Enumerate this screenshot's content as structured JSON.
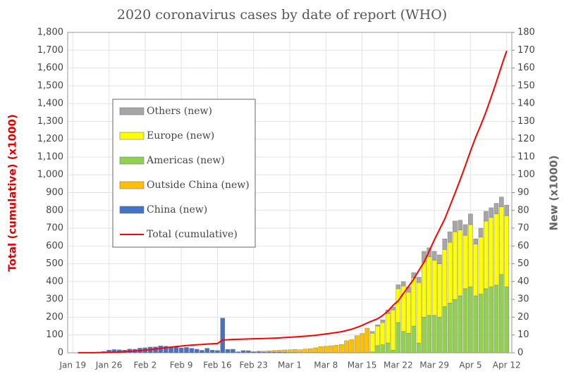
{
  "chart_data": {
    "type": "stacked_bar_line",
    "title": "2020 coronavirus cases by date of report (WHO)",
    "ylabel": "Total (cumulative) (x1000)",
    "y2label": "New (x1000)",
    "categories": [
      "Jan 19",
      null,
      null,
      null,
      null,
      null,
      null,
      "Jan 26",
      null,
      null,
      null,
      null,
      null,
      null,
      "Feb 2",
      null,
      null,
      null,
      null,
      null,
      null,
      "Feb 9",
      null,
      null,
      null,
      null,
      null,
      null,
      "Feb 16",
      null,
      null,
      null,
      null,
      null,
      null,
      "Feb 23",
      null,
      null,
      null,
      null,
      null,
      null,
      "Mar 1",
      null,
      null,
      null,
      null,
      null,
      null,
      "Mar 8",
      null,
      null,
      null,
      null,
      null,
      null,
      "Mar 15",
      null,
      null,
      null,
      null,
      null,
      null,
      "Mar 22",
      null,
      null,
      null,
      null,
      null,
      null,
      "Mar 29",
      null,
      null,
      null,
      null,
      null,
      null,
      "Apr 5",
      null,
      null,
      null,
      null,
      null,
      null,
      "Apr 12"
    ],
    "series": [
      {
        "name": "Others (new)",
        "color": "#a6a6a6",
        "axis": "y2",
        "values": [
          null,
          null,
          null,
          null,
          null,
          null,
          null,
          null,
          null,
          null,
          null,
          null,
          null,
          null,
          null,
          null,
          null,
          null,
          null,
          null,
          null,
          null,
          null,
          null,
          null,
          null,
          null,
          null,
          null,
          null,
          null,
          null,
          null,
          null,
          null,
          null,
          null,
          null,
          null,
          null,
          null,
          null,
          null,
          null,
          null,
          null,
          null,
          null,
          null,
          null,
          null,
          null,
          null,
          null,
          null,
          null,
          null,
          null,
          1,
          0.7,
          1.5,
          2,
          1.7,
          2.2,
          2.5,
          3,
          3,
          3,
          6,
          5,
          5,
          5,
          6,
          6,
          6,
          5.5,
          6,
          6,
          3,
          5,
          5.5,
          5.5,
          6,
          5.5,
          6
        ]
      },
      {
        "name": "Europe (new)",
        "color": "#ffff00",
        "axis": "y2",
        "values": [
          null,
          null,
          null,
          null,
          null,
          null,
          null,
          null,
          null,
          null,
          null,
          null,
          null,
          null,
          null,
          null,
          null,
          null,
          null,
          null,
          null,
          null,
          null,
          null,
          null,
          null,
          null,
          null,
          null,
          null,
          null,
          null,
          null,
          null,
          null,
          null,
          null,
          null,
          null,
          null,
          null,
          null,
          null,
          null,
          null,
          null,
          null,
          null,
          null,
          null,
          null,
          null,
          null,
          null,
          null,
          null,
          null,
          null,
          10.5,
          11,
          12.5,
          16.5,
          22.5,
          19,
          25.5,
          23,
          27,
          34,
          31,
          33,
          31,
          30,
          32,
          34,
          38,
          37,
          30,
          35,
          29,
          32,
          38,
          39,
          40,
          38,
          40
        ]
      },
      {
        "name": "Americas (new)",
        "color": "#92d050",
        "axis": "y2",
        "values": [
          null,
          null,
          null,
          null,
          null,
          null,
          null,
          null,
          null,
          null,
          null,
          null,
          null,
          null,
          null,
          null,
          null,
          null,
          null,
          null,
          null,
          null,
          null,
          null,
          null,
          null,
          null,
          null,
          null,
          null,
          null,
          null,
          null,
          null,
          null,
          null,
          null,
          null,
          null,
          null,
          null,
          null,
          null,
          null,
          null,
          null,
          null,
          null,
          null,
          null,
          null,
          null,
          null,
          null,
          null,
          null,
          null,
          null,
          0.5,
          4,
          4.5,
          5.5,
          1.5,
          17,
          12,
          11,
          15,
          5.5,
          20,
          21,
          21,
          20,
          26,
          28,
          30,
          32,
          36,
          37,
          32,
          33,
          36,
          37,
          38,
          44,
          37
        ]
      },
      {
        "name": "Outside China (new)",
        "color": "#ffc000",
        "axis": "y2",
        "values": [
          null,
          null,
          null,
          null,
          null,
          null,
          null,
          null,
          null,
          null,
          null,
          null,
          null,
          null,
          null,
          null,
          null,
          null,
          null,
          null,
          null,
          null,
          null,
          null,
          null,
          null,
          null,
          null,
          null,
          null,
          0.1,
          0.1,
          0.1,
          0.2,
          0.2,
          0.3,
          0.3,
          0.5,
          0.7,
          0.9,
          1.0,
          1.3,
          1.5,
          1.7,
          1.6,
          2.0,
          2.2,
          2.7,
          3.4,
          3.6,
          3.9,
          4.2,
          4.6,
          6.7,
          7.4,
          9.5,
          10.8,
          13.8,
          null,
          null,
          null,
          null,
          null,
          null,
          null,
          null,
          null,
          null,
          null,
          null,
          null,
          null,
          null,
          null,
          null,
          null,
          null,
          null,
          null,
          null,
          null,
          null,
          null,
          null,
          null
        ]
      },
      {
        "name": "China (new)",
        "color": "#4472c4",
        "axis": "y2",
        "values": [
          0,
          0,
          0,
          0,
          0.3,
          0.4,
          0.7,
          1.5,
          1.8,
          1.7,
          1.5,
          2.1,
          2.0,
          2.6,
          2.8,
          3.2,
          3.3,
          3.9,
          3.7,
          3.2,
          3.4,
          2.7,
          3.0,
          2.5,
          2.0,
          1.4,
          2.5,
          1.5,
          1.3,
          19.5,
          1.8,
          1.9,
          0.5,
          1.1,
          1.0,
          0.4,
          0.6,
          0.4,
          0.4,
          0.4,
          0.4,
          0.3,
          0.2,
          0.2,
          0.1,
          0.1,
          0.1,
          0.1,
          0.1,
          0.05,
          0.05,
          0.05,
          0.05,
          0.05,
          0.05,
          0.05,
          0.05,
          0.05,
          null,
          null,
          null,
          null,
          null,
          null,
          null,
          null,
          null,
          null,
          null,
          null,
          null,
          null,
          null,
          null,
          null,
          null,
          null,
          null,
          null,
          null,
          null,
          null,
          null,
          null,
          null
        ]
      },
      {
        "name": "Total (cumulative)",
        "color": "#ff0000",
        "type": "line",
        "axis": "y",
        "values": [
          null,
          0.3,
          0.3,
          0.6,
          0.6,
          0.9,
          1.3,
          2.0,
          2.8,
          4.6,
          6.1,
          7.8,
          9.8,
          11.9,
          14.6,
          17.4,
          20.6,
          24.6,
          28.3,
          31.5,
          34.9,
          37.6,
          40.6,
          43.1,
          45.2,
          46.6,
          49.1,
          50.6,
          51.9,
          71.4,
          73.3,
          75.2,
          75.7,
          76.8,
          77.8,
          78.8,
          79.3,
          80.2,
          81.1,
          82.3,
          83.7,
          85.4,
          87.1,
          88.9,
          90.8,
          92.9,
          95.3,
          98.2,
          101.8,
          105.8,
          109.6,
          113.7,
          118.3,
          125.0,
          132.5,
          142.5,
          153.5,
          167.5,
          179.1,
          191.1,
          209.8,
          234.1,
          266.1,
          292.1,
          332.9,
          372.8,
          413.5,
          462.7,
          509.2,
          571.7,
          634.8,
          693.2,
          750.9,
          823.6,
          896.5,
          972.3,
          1051.6,
          1133.8,
          1210.9,
          1279.7,
          1353.4,
          1436.2,
          1521.3,
          1610.9,
          1696.6
        ]
      }
    ],
    "ylim": [
      0,
      1800
    ],
    "yticks": [
      0,
      100,
      200,
      300,
      400,
      500,
      600,
      700,
      800,
      900,
      {
        "value": 1000,
        "label": "1,000"
      },
      {
        "value": 1100,
        "label": "1,100"
      },
      {
        "value": 1200,
        "label": "1,200"
      },
      {
        "value": 1300,
        "label": "1,300"
      },
      {
        "value": 1400,
        "label": "1,400"
      },
      {
        "value": 1500,
        "label": "1,500"
      },
      {
        "value": 1600,
        "label": "1,600"
      },
      {
        "value": 1700,
        "label": "1,700"
      },
      {
        "value": 1800,
        "label": "1,800"
      }
    ],
    "y2lim": [
      0,
      180
    ],
    "y2ticks": [
      0,
      10,
      20,
      30,
      40,
      50,
      60,
      70,
      80,
      90,
      100,
      110,
      120,
      130,
      140,
      150,
      160,
      170,
      180
    ],
    "grid": true,
    "legend": "upper left"
  }
}
